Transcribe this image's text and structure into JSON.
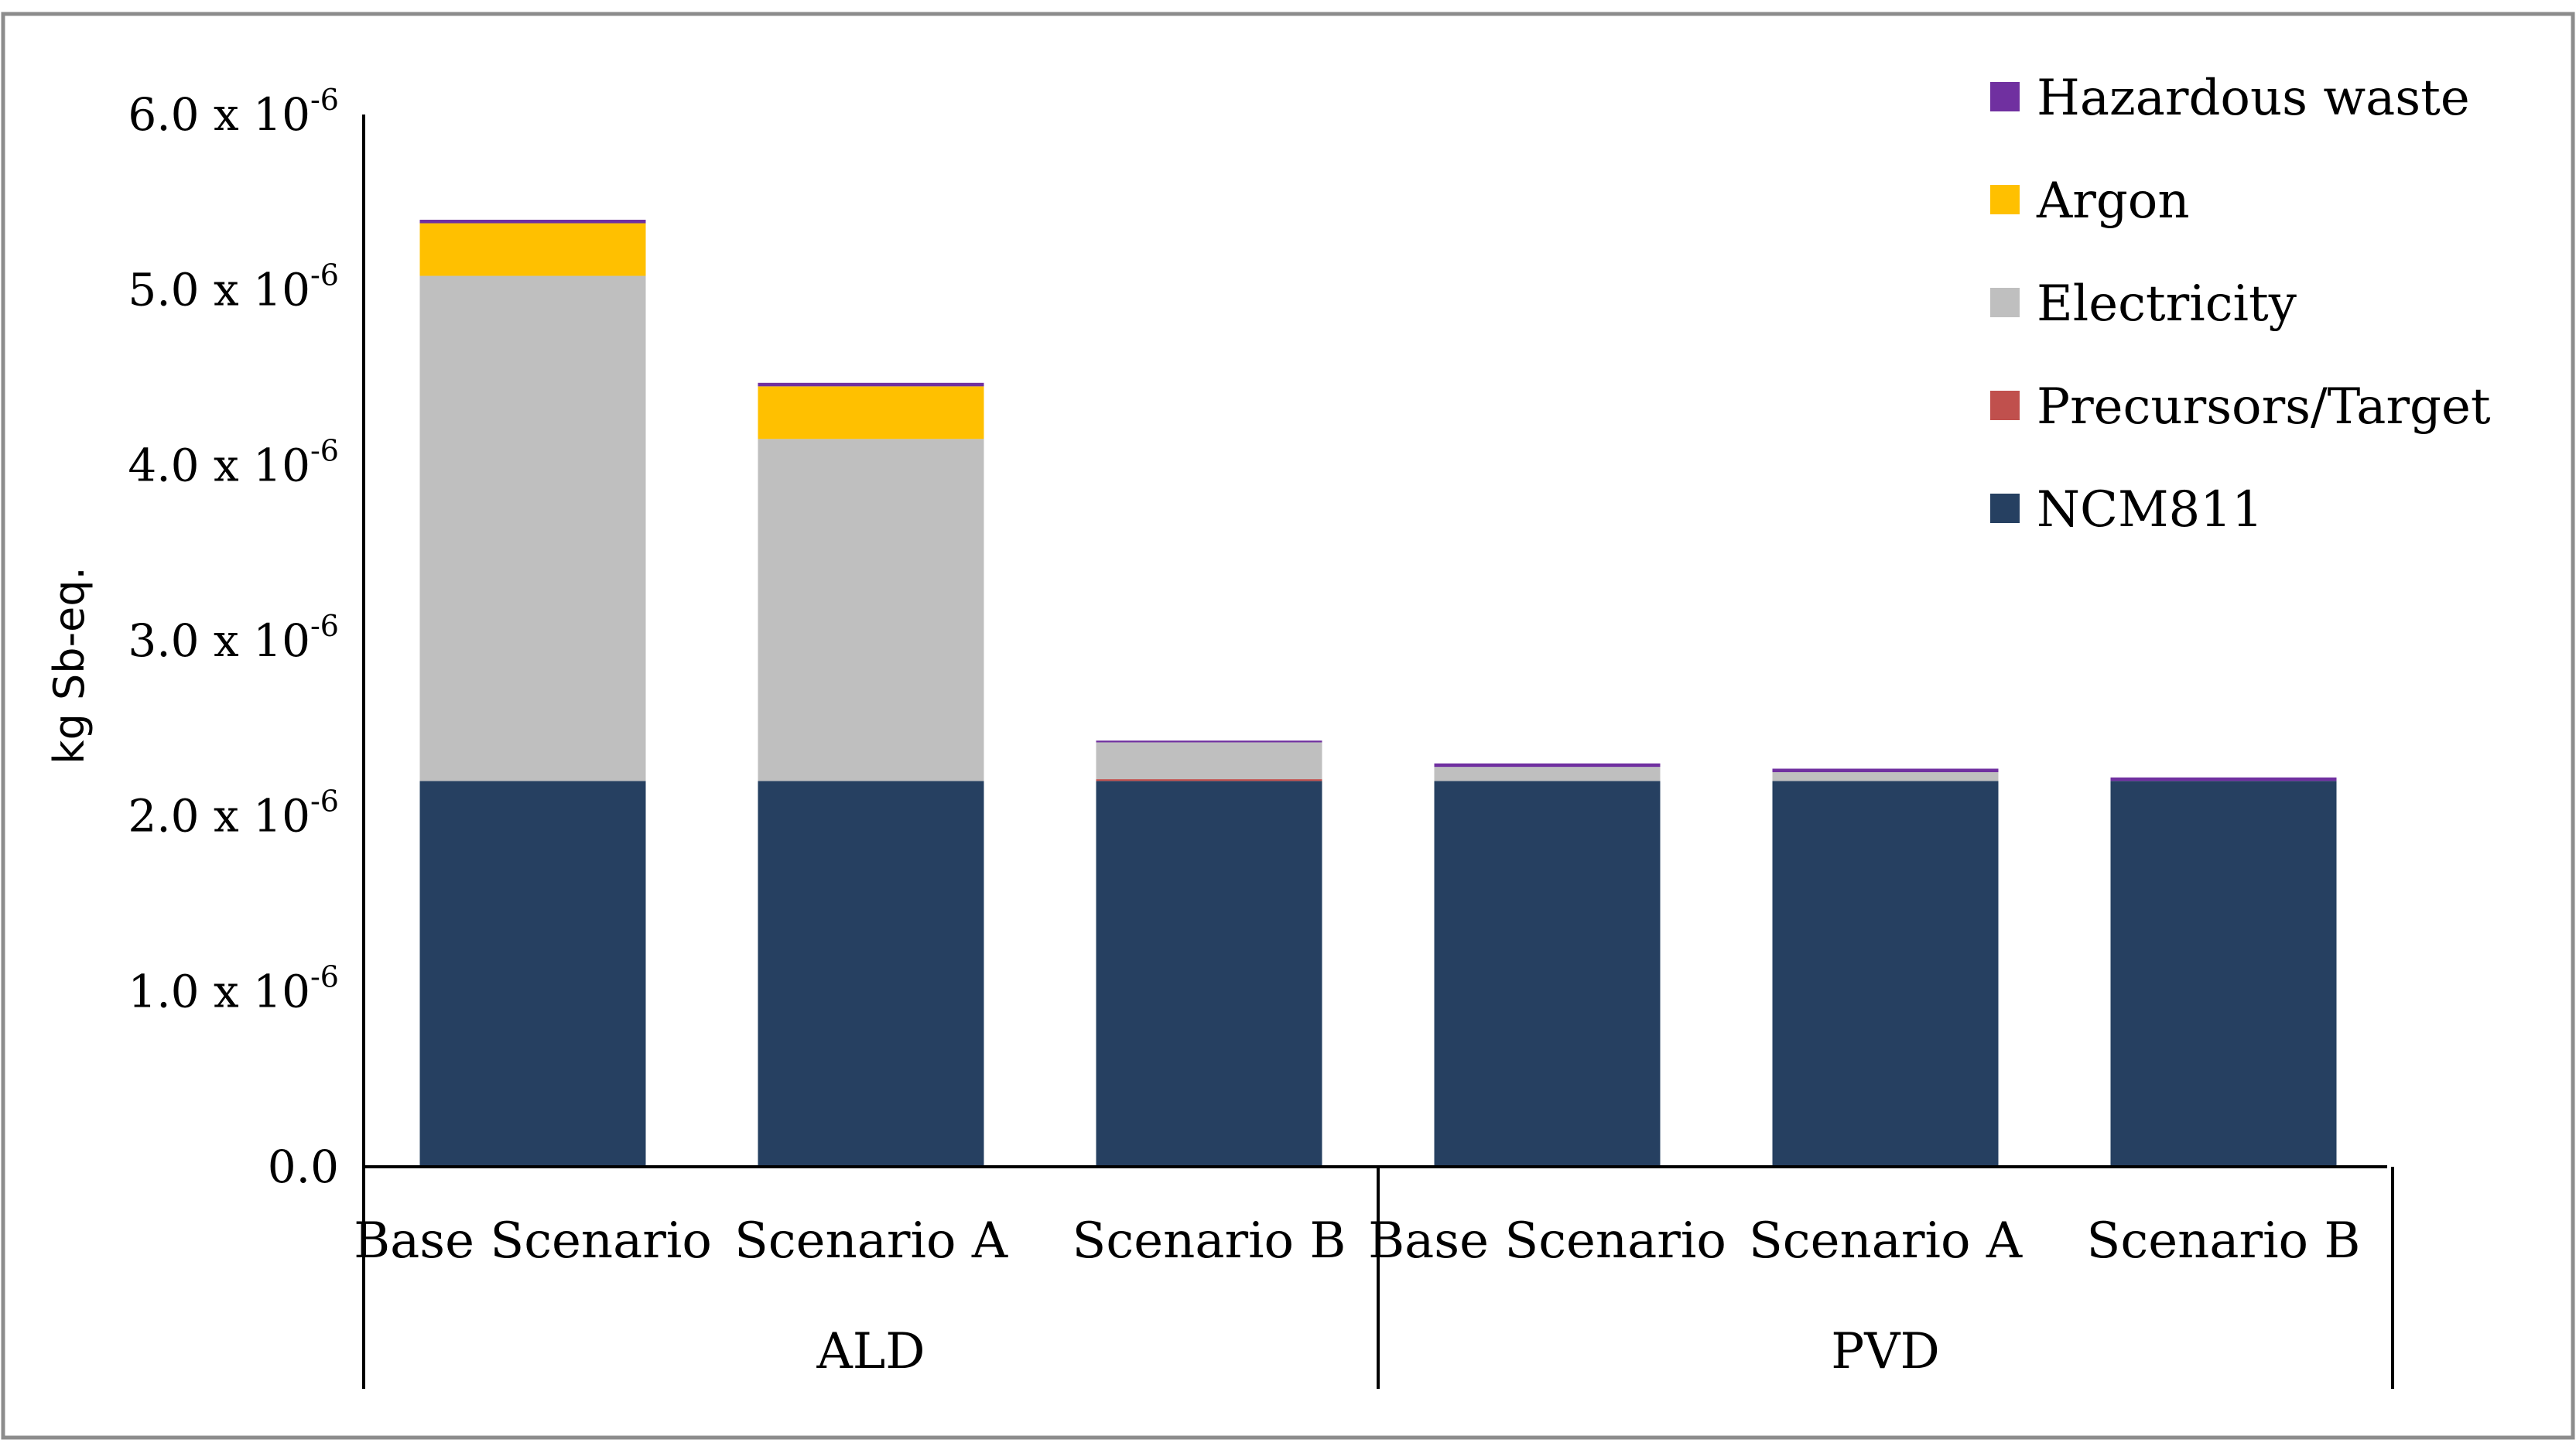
{
  "chart_data": {
    "type": "bar",
    "stacked": true,
    "title": "",
    "xlabel": "",
    "ylabel": "kg Sb-eq.",
    "ylim": [
      0,
      6e-06
    ],
    "legend_position": "top-right",
    "grid": false,
    "groups": [
      {
        "name": "ALD",
        "categories": [
          "Base Scenario",
          "Scenario A",
          "Scenario B"
        ]
      },
      {
        "name": "PVD",
        "categories": [
          "Base Scenario",
          "Scenario A",
          "Scenario B"
        ]
      }
    ],
    "categories": [
      "Base Scenario",
      "Scenario A",
      "Scenario B",
      "Base Scenario",
      "Scenario A",
      "Scenario B"
    ],
    "yticks": [
      {
        "value": 0.0,
        "mantissa": "0.0",
        "times": "",
        "base": "",
        "exponent": ""
      },
      {
        "value": 1e-06,
        "mantissa": "1.0",
        "times": "x",
        "base": "10",
        "exponent": "-6"
      },
      {
        "value": 2e-06,
        "mantissa": "2.0",
        "times": "x",
        "base": "10",
        "exponent": "-6"
      },
      {
        "value": 3e-06,
        "mantissa": "3.0",
        "times": "x",
        "base": "10",
        "exponent": "-6"
      },
      {
        "value": 4e-06,
        "mantissa": "4.0",
        "times": "x",
        "base": "10",
        "exponent": "-6"
      },
      {
        "value": 5e-06,
        "mantissa": "5.0",
        "times": "x",
        "base": "10",
        "exponent": "-6"
      },
      {
        "value": 6e-06,
        "mantissa": "6.0",
        "times": "x",
        "base": "10",
        "exponent": "-6"
      }
    ],
    "series": [
      {
        "name": "NCM811",
        "color": "#264061",
        "values": [
          2.2e-06,
          2.2e-06,
          2.2e-06,
          2.2e-06,
          2.2e-06,
          2.2e-06
        ]
      },
      {
        "name": "Precursors/Target",
        "color": "#c0504d",
        "values": [
          0.0,
          0.0,
          1e-08,
          0.0,
          0.0,
          0.0
        ]
      },
      {
        "name": "Electricity",
        "color": "#bfbfbf",
        "values": [
          2.88e-06,
          1.95e-06,
          2.1e-07,
          8e-08,
          5e-08,
          0.0
        ]
      },
      {
        "name": "Argon",
        "color": "#ffc000",
        "values": [
          3e-07,
          3e-07,
          0.0,
          0.0,
          0.0,
          0.0
        ]
      },
      {
        "name": "Hazardous waste",
        "color": "#7030a0",
        "values": [
          2e-08,
          2e-08,
          1e-08,
          2e-08,
          2e-08,
          2e-08
        ]
      }
    ]
  }
}
